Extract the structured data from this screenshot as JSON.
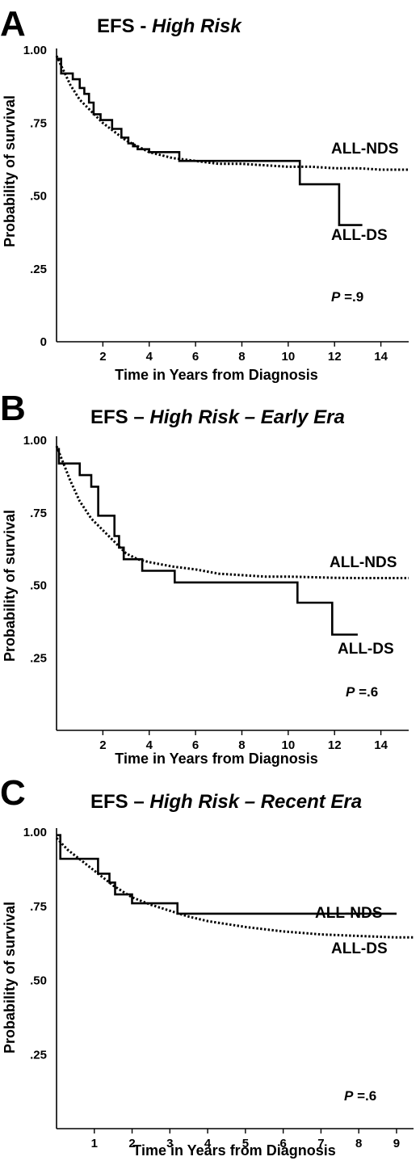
{
  "chart_data": [
    {
      "type": "line",
      "panel_letter": "A",
      "title_prefix": "EFS - ",
      "title_italic": "High Risk",
      "xlabel": "Time in Years from Diagnosis",
      "ylabel": "Probability of survival",
      "xlim": [
        0,
        15.2
      ],
      "ylim": [
        0,
        1.0
      ],
      "x_ticks": [
        2,
        4,
        6,
        8,
        10,
        12,
        14
      ],
      "x_tick_labels": [
        "2",
        "4",
        "6",
        "8",
        "10",
        "12",
        "14"
      ],
      "y_ticks": [
        0,
        0.25,
        0.5,
        0.75,
        1.0
      ],
      "y_tick_labels": [
        "0",
        ".25",
        ".50",
        ".75",
        "1.00"
      ],
      "p_prefix": "P",
      "p_value": " =.9",
      "series": [
        {
          "name": "ALL-DS",
          "style": "solid",
          "x": [
            0,
            0.05,
            0.2,
            0.2,
            0.7,
            0.7,
            1.0,
            1.0,
            1.2,
            1.2,
            1.4,
            1.4,
            1.6,
            1.6,
            1.9,
            1.9,
            2.4,
            2.4,
            2.8,
            2.8,
            3.1,
            3.1,
            3.3,
            3.3,
            3.5,
            3.5,
            4.0,
            4.0,
            5.3,
            5.3,
            10.5,
            10.5,
            12.2,
            12.2,
            13.2
          ],
          "y": [
            0.97,
            0.97,
            0.97,
            0.92,
            0.92,
            0.9,
            0.9,
            0.87,
            0.87,
            0.85,
            0.85,
            0.82,
            0.82,
            0.78,
            0.78,
            0.76,
            0.76,
            0.73,
            0.73,
            0.7,
            0.7,
            0.68,
            0.68,
            0.67,
            0.67,
            0.66,
            0.66,
            0.65,
            0.65,
            0.62,
            0.62,
            0.54,
            0.54,
            0.4,
            0.4
          ]
        },
        {
          "name": "ALL-NDS",
          "style": "dotted",
          "x": [
            0,
            0.3,
            0.6,
            1.0,
            1.5,
            2.0,
            2.5,
            3.0,
            3.5,
            4.0,
            5.0,
            6.0,
            7.0,
            8.0,
            9.0,
            10.0,
            11.0,
            12.0,
            13.0,
            14.0,
            15.2
          ],
          "y": [
            0.98,
            0.93,
            0.88,
            0.83,
            0.79,
            0.75,
            0.72,
            0.69,
            0.67,
            0.65,
            0.63,
            0.62,
            0.61,
            0.61,
            0.605,
            0.6,
            0.6,
            0.595,
            0.595,
            0.59,
            0.59
          ]
        }
      ]
    },
    {
      "type": "line",
      "panel_letter": "B",
      "title_prefix": "EFS – ",
      "title_italic": "High Risk – Early Era",
      "xlabel": "Time in Years from Diagnosis",
      "ylabel": "Probability of survival",
      "xlim": [
        0,
        15.2
      ],
      "ylim": [
        0,
        1.0
      ],
      "x_ticks": [
        2,
        4,
        6,
        8,
        10,
        12,
        14
      ],
      "x_tick_labels": [
        "2",
        "4",
        "6",
        "8",
        "10",
        "12",
        "14"
      ],
      "y_ticks": [
        0.25,
        0.5,
        0.75,
        1.0
      ],
      "y_tick_labels": [
        ".25",
        ".50",
        ".75",
        "1.00"
      ],
      "p_prefix": "P",
      "p_value": " =.6",
      "series": [
        {
          "name": "ALL-DS",
          "style": "solid",
          "x": [
            0,
            0.1,
            0.1,
            1.0,
            1.0,
            1.5,
            1.5,
            1.8,
            1.8,
            2.5,
            2.5,
            2.7,
            2.7,
            2.9,
            2.9,
            3.2,
            3.2,
            3.7,
            3.7,
            4.0,
            4.0,
            5.1,
            5.1,
            10.4,
            10.4,
            11.9,
            11.9,
            13.0
          ],
          "y": [
            0.97,
            0.97,
            0.92,
            0.92,
            0.88,
            0.88,
            0.84,
            0.84,
            0.74,
            0.74,
            0.67,
            0.67,
            0.63,
            0.63,
            0.59,
            0.59,
            0.59,
            0.59,
            0.55,
            0.55,
            0.55,
            0.55,
            0.51,
            0.51,
            0.44,
            0.44,
            0.33,
            0.33
          ]
        },
        {
          "name": "ALL-NDS",
          "style": "dotted",
          "x": [
            0,
            0.3,
            0.6,
            1.0,
            1.5,
            2.0,
            2.5,
            3.0,
            3.5,
            4.0,
            5.0,
            6.0,
            7.0,
            8.0,
            9.0,
            10.0,
            11.0,
            12.0,
            13.0,
            14.0,
            15.2
          ],
          "y": [
            0.98,
            0.92,
            0.86,
            0.79,
            0.73,
            0.69,
            0.65,
            0.61,
            0.59,
            0.58,
            0.565,
            0.555,
            0.54,
            0.535,
            0.53,
            0.53,
            0.528,
            0.526,
            0.525,
            0.525,
            0.525
          ]
        }
      ]
    },
    {
      "type": "line",
      "panel_letter": "C",
      "title_prefix": "EFS – ",
      "title_italic": "High Risk – Recent Era",
      "xlabel": "Time in Years from Diagnosis",
      "ylabel": "Probability of survival",
      "xlim": [
        0,
        9.45
      ],
      "ylim": [
        0,
        1.0
      ],
      "x_ticks": [
        1,
        2,
        3,
        4,
        5,
        6,
        7,
        8,
        9
      ],
      "x_tick_labels": [
        "1",
        "2",
        "3",
        "4",
        "5",
        "6",
        "7",
        "8",
        "9"
      ],
      "y_ticks": [
        0.25,
        0.5,
        0.75,
        1.0
      ],
      "y_tick_labels": [
        ".25",
        ".50",
        ".75",
        "1.00"
      ],
      "p_prefix": "P",
      "p_value": " =.6",
      "series": [
        {
          "name": "ALL-NDS",
          "style": "solid",
          "x": [
            0,
            0.1,
            0.1,
            0.5,
            0.5,
            1.1,
            1.1,
            1.4,
            1.4,
            1.55,
            1.55,
            1.75,
            1.75,
            2.0,
            2.0,
            2.4,
            2.4,
            3.2,
            3.2,
            9.0
          ],
          "y": [
            0.99,
            0.99,
            0.91,
            0.91,
            0.91,
            0.91,
            0.86,
            0.86,
            0.83,
            0.83,
            0.79,
            0.79,
            0.79,
            0.79,
            0.76,
            0.76,
            0.76,
            0.76,
            0.725,
            0.725
          ]
        },
        {
          "name": "ALL-DS",
          "style": "dotted",
          "x": [
            0,
            0.3,
            0.6,
            1.0,
            1.5,
            2.0,
            2.5,
            3.0,
            3.5,
            4.0,
            5.0,
            6.0,
            7.0,
            8.0,
            9.0,
            9.45
          ],
          "y": [
            0.98,
            0.94,
            0.91,
            0.87,
            0.82,
            0.78,
            0.755,
            0.735,
            0.715,
            0.7,
            0.68,
            0.665,
            0.655,
            0.65,
            0.645,
            0.645
          ]
        }
      ]
    }
  ]
}
